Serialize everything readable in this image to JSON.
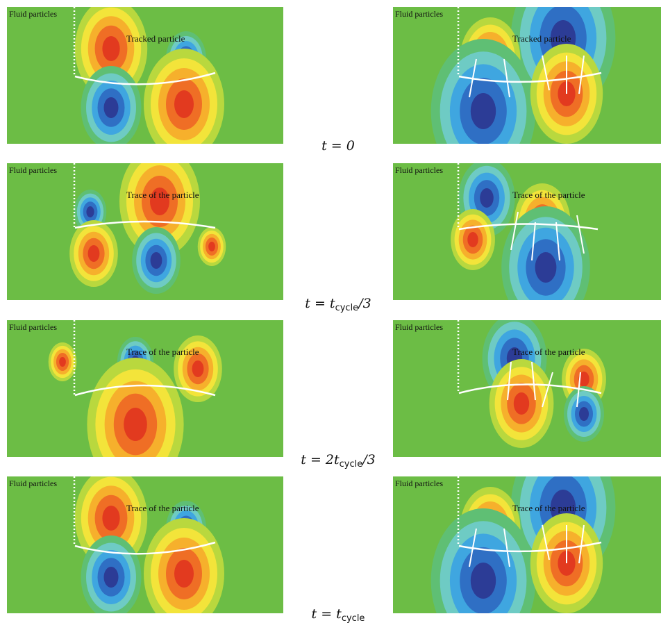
{
  "rows": [
    {
      "left": {
        "label": "Fluid particles",
        "annotation": "Tracked particle"
      },
      "right": {
        "label": "Fluid particles",
        "annotation": "Tracked particle"
      },
      "time": {
        "text": "t = 0"
      }
    },
    {
      "left": {
        "label": "Fluid particles",
        "annotation": "Trace of the particle"
      },
      "right": {
        "label": "Fluid particles",
        "annotation": "Trace of the particle"
      },
      "time": {
        "text": "t = t",
        "subscript": "cycle",
        "suffix": "/3"
      }
    },
    {
      "left": {
        "label": "Fluid particles",
        "annotation": "Trace of the particle"
      },
      "right": {
        "label": "Fluid particles",
        "annotation": "Trace of the particle"
      },
      "time": {
        "text": "t = 2t",
        "subscript": "cycle",
        "suffix": "/3"
      }
    },
    {
      "left": {
        "label": "Fluid particles",
        "annotation": "Trace of the particle"
      },
      "right": {
        "label": "Fluid particles",
        "annotation": "Trace of the particle"
      },
      "time": {
        "text": "t = t",
        "subscript": "cycle"
      }
    }
  ]
}
